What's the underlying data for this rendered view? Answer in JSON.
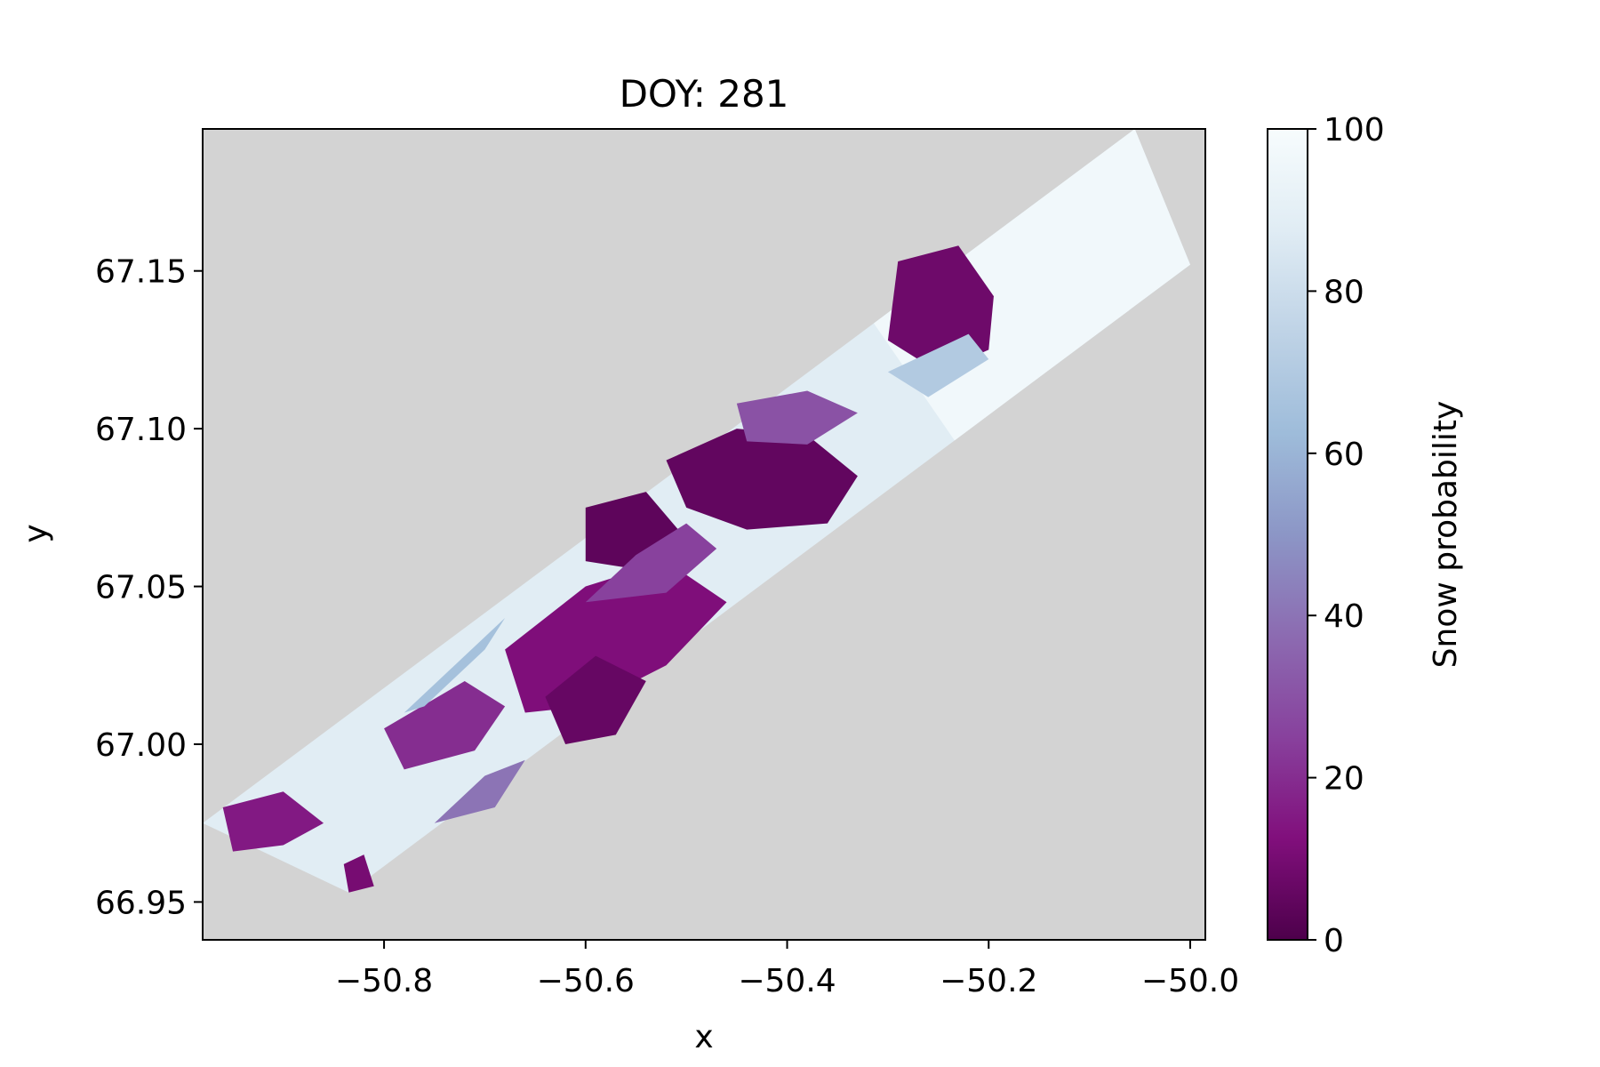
{
  "chart_data": {
    "type": "heatmap",
    "title": "DOY: 281",
    "xlabel": "x",
    "ylabel": "y",
    "xlim": [
      -50.98,
      -49.985
    ],
    "ylim": [
      66.938,
      67.195
    ],
    "xticks": [
      -50.8,
      -50.6,
      -50.4,
      -50.2,
      -50.0
    ],
    "xtick_labels": [
      "−50.8",
      "−50.6",
      "−50.4",
      "−50.2",
      "−50.0"
    ],
    "yticks": [
      66.95,
      67.0,
      67.05,
      67.1,
      67.15
    ],
    "ytick_labels": [
      "66.95",
      "67.00",
      "67.05",
      "67.10",
      "67.15"
    ],
    "background_color": "#d3d3d3",
    "colormap": "BuPu_r",
    "colorbar": {
      "label": "Snow probability",
      "range": [
        0,
        100
      ],
      "ticks": [
        0,
        20,
        40,
        60,
        80,
        100
      ],
      "tick_labels": [
        "0",
        "20",
        "40",
        "60",
        "80",
        "100"
      ],
      "stops": [
        "#4d004b",
        "#810f7c",
        "#88419d",
        "#8c6bb1",
        "#8c96c6",
        "#9ebcda",
        "#bfd3e6",
        "#e0ecf4",
        "#f7fcfd"
      ]
    },
    "swath_corners": [
      {
        "x": -50.98,
        "y": 66.975
      },
      {
        "x": -50.055,
        "y": 67.195
      },
      {
        "x": -50.0,
        "y": 67.152
      },
      {
        "x": -50.835,
        "y": 66.953
      }
    ],
    "regions": [
      {
        "value": 8,
        "points": [
          [
            -50.29,
            67.153
          ],
          [
            -50.23,
            67.158
          ],
          [
            -50.195,
            67.142
          ],
          [
            -50.2,
            67.125
          ],
          [
            -50.25,
            67.118
          ],
          [
            -50.3,
            67.128
          ]
        ]
      },
      {
        "value": 5,
        "points": [
          [
            -50.52,
            67.09
          ],
          [
            -50.45,
            67.1
          ],
          [
            -50.38,
            67.098
          ],
          [
            -50.33,
            67.085
          ],
          [
            -50.36,
            67.07
          ],
          [
            -50.44,
            67.068
          ],
          [
            -50.5,
            67.075
          ]
        ]
      },
      {
        "value": 4,
        "points": [
          [
            -50.6,
            67.075
          ],
          [
            -50.54,
            67.08
          ],
          [
            -50.5,
            67.065
          ],
          [
            -50.54,
            67.055
          ],
          [
            -50.6,
            67.058
          ]
        ]
      },
      {
        "value": 12,
        "points": [
          [
            -50.68,
            67.03
          ],
          [
            -50.6,
            67.05
          ],
          [
            -50.52,
            67.058
          ],
          [
            -50.46,
            67.045
          ],
          [
            -50.52,
            67.025
          ],
          [
            -50.6,
            67.012
          ],
          [
            -50.66,
            67.01
          ]
        ]
      },
      {
        "value": 6,
        "points": [
          [
            -50.64,
            67.015
          ],
          [
            -50.59,
            67.028
          ],
          [
            -50.54,
            67.02
          ],
          [
            -50.57,
            67.003
          ],
          [
            -50.62,
            67.0
          ]
        ]
      },
      {
        "value": 20,
        "points": [
          [
            -50.8,
            67.005
          ],
          [
            -50.72,
            67.02
          ],
          [
            -50.68,
            67.012
          ],
          [
            -50.71,
            66.998
          ],
          [
            -50.78,
            66.992
          ]
        ]
      },
      {
        "value": 15,
        "points": [
          [
            -50.96,
            66.98
          ],
          [
            -50.9,
            66.985
          ],
          [
            -50.86,
            66.975
          ],
          [
            -50.9,
            66.968
          ],
          [
            -50.95,
            66.966
          ]
        ]
      },
      {
        "value": 30,
        "points": [
          [
            -50.45,
            67.108
          ],
          [
            -50.38,
            67.112
          ],
          [
            -50.33,
            67.105
          ],
          [
            -50.38,
            67.095
          ],
          [
            -50.44,
            67.096
          ]
        ]
      },
      {
        "value": 10,
        "points": [
          [
            -50.84,
            66.962
          ],
          [
            -50.82,
            66.965
          ],
          [
            -50.81,
            66.955
          ],
          [
            -50.835,
            66.953
          ]
        ]
      },
      {
        "value": 25,
        "points": [
          [
            -50.6,
            67.045
          ],
          [
            -50.55,
            67.06
          ],
          [
            -50.5,
            67.07
          ],
          [
            -50.47,
            67.062
          ],
          [
            -50.52,
            67.048
          ]
        ]
      },
      {
        "value": 65,
        "points": [
          [
            -50.78,
            67.01
          ],
          [
            -50.72,
            67.028
          ],
          [
            -50.68,
            67.04
          ],
          [
            -50.7,
            67.03
          ],
          [
            -50.76,
            67.012
          ]
        ]
      },
      {
        "value": 70,
        "points": [
          [
            -50.3,
            67.118
          ],
          [
            -50.22,
            67.13
          ],
          [
            -50.2,
            67.122
          ],
          [
            -50.26,
            67.11
          ]
        ]
      },
      {
        "value": 40,
        "points": [
          [
            -50.75,
            66.975
          ],
          [
            -50.7,
            66.99
          ],
          [
            -50.66,
            66.995
          ],
          [
            -50.69,
            66.98
          ]
        ]
      }
    ]
  }
}
